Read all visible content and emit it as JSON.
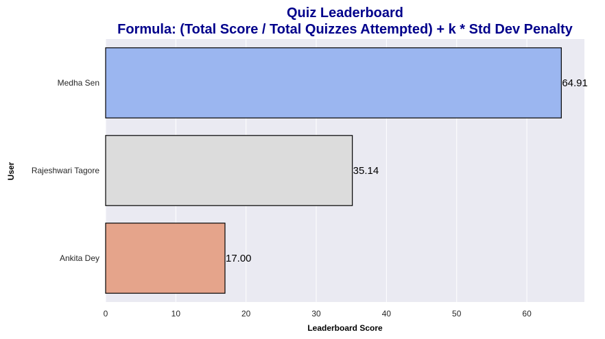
{
  "chart_data": {
    "type": "bar",
    "orientation": "horizontal",
    "title": "Quiz Leaderboard",
    "subtitle": "Formula: (Total Score / Total Quizzes Attempted) + k * Std Dev Penalty",
    "xlabel": "Leaderboard Score",
    "ylabel": "User",
    "categories": [
      "Medha Sen",
      "Rajeshwari Tagore",
      "Ankita Dey"
    ],
    "values": [
      64.91,
      35.14,
      17.0
    ],
    "data_labels": [
      "64.91",
      "35.14",
      "17.00"
    ],
    "xlim": [
      0,
      68.2
    ],
    "xticks": [
      0,
      10,
      20,
      30,
      40,
      50,
      60
    ],
    "xtick_labels": [
      "0",
      "10",
      "20",
      "30",
      "40",
      "50",
      "60"
    ],
    "grid": "vertical",
    "legend": "none"
  },
  "colors": {
    "plot_background": "#eaeaf2",
    "grid": "#ffffff",
    "title": "#00008b",
    "bar_edge": "#000000",
    "bars": [
      "#9bb6f0",
      "#dcdcdc",
      "#e5a48b"
    ]
  }
}
